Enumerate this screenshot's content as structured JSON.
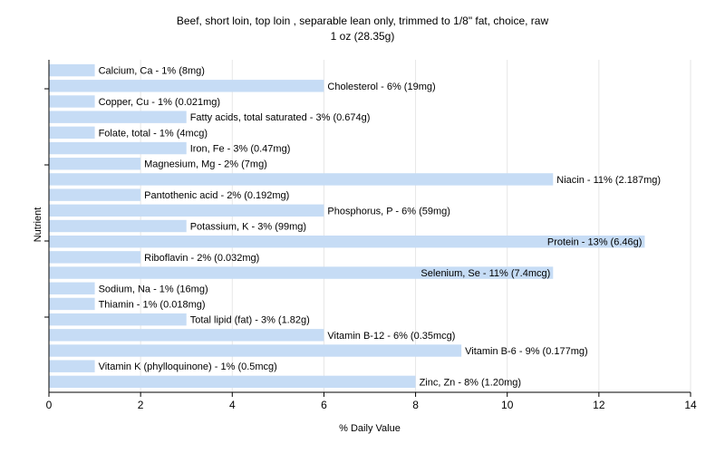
{
  "chart_data": {
    "type": "bar",
    "orientation": "horizontal",
    "title": "Beef, short loin, top loin , separable lean only, trimmed to 1/8\" fat, choice, raw",
    "subtitle": "1 oz (28.35g)",
    "xlabel": "% Daily Value",
    "ylabel": "Nutrient",
    "xlim": [
      0,
      14
    ],
    "xticks": [
      0,
      2,
      4,
      6,
      8,
      10,
      12,
      14
    ],
    "grid": true,
    "bar_color": "#c6dcf5",
    "categories": [
      "Calcium, Ca",
      "Cholesterol",
      "Copper, Cu",
      "Fatty acids, total saturated",
      "Folate, total",
      "Iron, Fe",
      "Magnesium, Mg",
      "Niacin",
      "Pantothenic acid",
      "Phosphorus, P",
      "Potassium, K",
      "Protein",
      "Riboflavin",
      "Selenium, Se",
      "Sodium, Na",
      "Thiamin",
      "Total lipid (fat)",
      "Vitamin B-12",
      "Vitamin B-6",
      "Vitamin K (phylloquinone)",
      "Zinc, Zn"
    ],
    "values": [
      1,
      6,
      1,
      3,
      1,
      3,
      2,
      11,
      2,
      6,
      3,
      13,
      2,
      11,
      1,
      1,
      3,
      6,
      9,
      1,
      8
    ],
    "labels": [
      "Calcium, Ca - 1% (8mg)",
      "Cholesterol - 6% (19mg)",
      "Copper, Cu - 1% (0.021mg)",
      "Fatty acids, total saturated - 3% (0.674g)",
      "Folate, total - 1% (4mcg)",
      "Iron, Fe - 3% (0.47mg)",
      "Magnesium, Mg - 2% (7mg)",
      "Niacin - 11% (2.187mg)",
      "Pantothenic acid - 2% (0.192mg)",
      "Phosphorus, P - 6% (59mg)",
      "Potassium, K - 3% (99mg)",
      "Protein - 13% (6.46g)",
      "Riboflavin - 2% (0.032mg)",
      "Selenium, Se - 11% (7.4mcg)",
      "Sodium, Na - 1% (16mg)",
      "Thiamin - 1% (0.018mg)",
      "Total lipid (fat) - 3% (1.82g)",
      "Vitamin B-12 - 6% (0.35mcg)",
      "Vitamin B-6 - 9% (0.177mg)",
      "Vitamin K (phylloquinone) - 1% (0.5mcg)",
      "Zinc, Zn - 8% (1.20mg)"
    ],
    "inside_label_indices": [
      11,
      13
    ]
  }
}
